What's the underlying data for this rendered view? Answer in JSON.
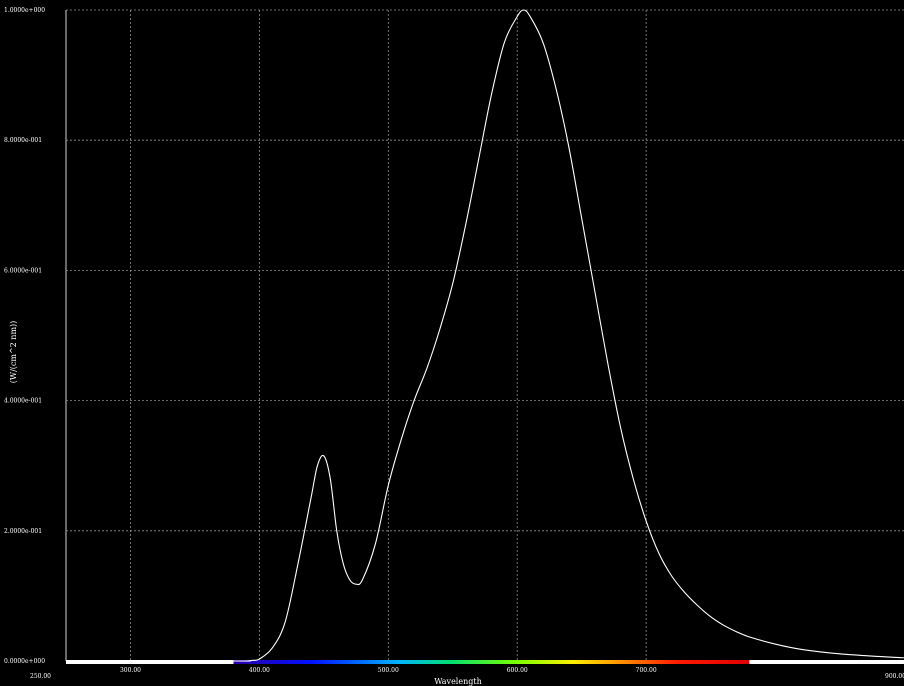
{
  "chart_data": {
    "type": "line",
    "xlabel": "Wavelength",
    "ylabel": "(W/(cm^2 nm))",
    "xlim": [
      250,
      900
    ],
    "ylim": [
      0,
      1
    ],
    "grid": true,
    "x_ticks": [
      {
        "value": 250,
        "label": "250.00"
      },
      {
        "value": 300,
        "label": "300.00"
      },
      {
        "value": 400,
        "label": "400.00"
      },
      {
        "value": 500,
        "label": "500.00"
      },
      {
        "value": 600,
        "label": "600.00"
      },
      {
        "value": 700,
        "label": "700.00"
      },
      {
        "value": 900,
        "label": "900.00"
      }
    ],
    "y_ticks": [
      {
        "value": 0.0,
        "label": "0.0000e+000"
      },
      {
        "value": 0.2,
        "label": "2.0000e-001"
      },
      {
        "value": 0.4,
        "label": "4.0000e-001"
      },
      {
        "value": 0.6,
        "label": "6.0000e-001"
      },
      {
        "value": 0.8,
        "label": "8.0000e-001"
      },
      {
        "value": 1.0,
        "label": "1.0000e+000"
      }
    ],
    "spectrum_bar": {
      "x_start": 380,
      "x_end": 780
    },
    "colors": {
      "background": "#000000",
      "line": "#ffffff",
      "grid": "#8c8c8c"
    },
    "series": [
      {
        "x": [
          250,
          380,
          390,
          395,
          400,
          410,
          420,
          430,
          440,
          445,
          450,
          455,
          460,
          465,
          470,
          475,
          480,
          490,
          500,
          510,
          520,
          530,
          540,
          550,
          560,
          570,
          580,
          590,
          600,
          605,
          610,
          620,
          630,
          640,
          650,
          660,
          670,
          680,
          690,
          700,
          710,
          720,
          730,
          740,
          750,
          760,
          770,
          780,
          800,
          820,
          850,
          880,
          900
        ],
        "y": [
          0,
          0,
          0.0,
          0.001,
          0.003,
          0.02,
          0.06,
          0.15,
          0.25,
          0.3,
          0.315,
          0.28,
          0.2,
          0.15,
          0.125,
          0.118,
          0.125,
          0.18,
          0.27,
          0.34,
          0.4,
          0.45,
          0.51,
          0.58,
          0.67,
          0.77,
          0.87,
          0.95,
          0.99,
          1.0,
          0.99,
          0.95,
          0.88,
          0.79,
          0.68,
          0.57,
          0.46,
          0.36,
          0.28,
          0.215,
          0.165,
          0.13,
          0.105,
          0.085,
          0.068,
          0.055,
          0.045,
          0.037,
          0.026,
          0.018,
          0.011,
          0.007,
          0.005
        ]
      }
    ]
  }
}
